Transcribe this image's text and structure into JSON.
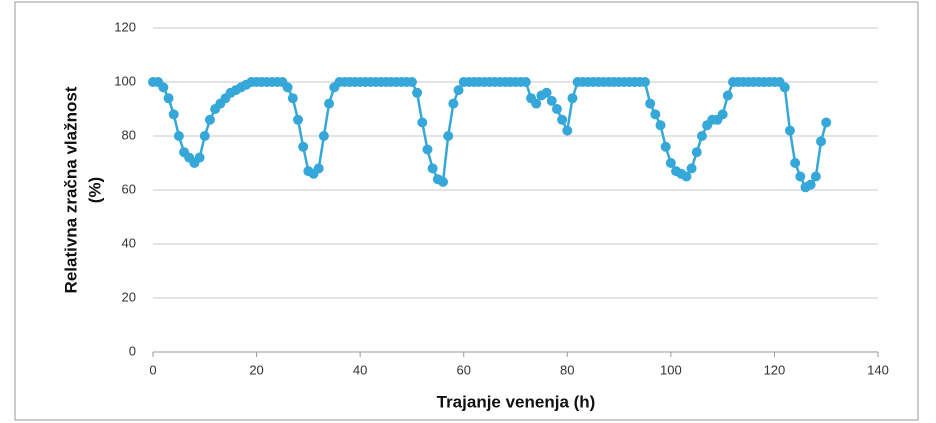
{
  "chart_data": {
    "type": "line",
    "ylabel_lines": [
      "Relativna zračna vlažnost",
      "(%)"
    ],
    "xlabel": "Trajanje venenja (h)",
    "x": [
      0,
      1,
      2,
      3,
      4,
      5,
      6,
      7,
      8,
      9,
      10,
      11,
      12,
      13,
      14,
      15,
      16,
      17,
      18,
      19,
      20,
      21,
      22,
      23,
      24,
      25,
      26,
      27,
      28,
      29,
      30,
      31,
      32,
      33,
      34,
      35,
      36,
      37,
      38,
      39,
      40,
      41,
      42,
      43,
      44,
      45,
      46,
      47,
      48,
      49,
      50,
      51,
      52,
      53,
      54,
      55,
      56,
      57,
      58,
      59,
      60,
      61,
      62,
      63,
      64,
      65,
      66,
      67,
      68,
      69,
      70,
      71,
      72,
      73,
      74,
      75,
      76,
      77,
      78,
      79,
      80,
      81,
      82,
      83,
      84,
      85,
      86,
      87,
      88,
      89,
      90,
      91,
      92,
      93,
      94,
      95,
      96,
      97,
      98,
      99,
      100,
      101,
      102,
      103,
      104,
      105,
      106,
      107,
      108,
      109,
      110,
      111,
      112,
      113,
      114,
      115,
      116,
      117,
      118,
      119,
      120,
      121,
      122,
      123,
      124,
      125,
      126,
      127,
      128,
      129,
      130
    ],
    "series": [
      {
        "color": "#35a7d9",
        "values": [
          100,
          100,
          98,
          94,
          88,
          80,
          74,
          72,
          70,
          72,
          80,
          86,
          90,
          92,
          94,
          96,
          97,
          98,
          99,
          100,
          100,
          100,
          100,
          100,
          100,
          100,
          98,
          94,
          86,
          76,
          67,
          66,
          68,
          80,
          92,
          98,
          100,
          100,
          100,
          100,
          100,
          100,
          100,
          100,
          100,
          100,
          100,
          100,
          100,
          100,
          100,
          96,
          85,
          75,
          68,
          64,
          63,
          80,
          92,
          97,
          100,
          100,
          100,
          100,
          100,
          100,
          100,
          100,
          100,
          100,
          100,
          100,
          100,
          94,
          92,
          95,
          96,
          93,
          90,
          86,
          82,
          94,
          100,
          100,
          100,
          100,
          100,
          100,
          100,
          100,
          100,
          100,
          100,
          100,
          100,
          100,
          92,
          88,
          84,
          76,
          70,
          67,
          66,
          65,
          68,
          74,
          80,
          84,
          86,
          86,
          88,
          95,
          100,
          100,
          100,
          100,
          100,
          100,
          100,
          100,
          100,
          100,
          98,
          82,
          70,
          65,
          61,
          62,
          65,
          78,
          85
        ]
      }
    ],
    "xlim": [
      0,
      140
    ],
    "xticks": [
      0,
      20,
      40,
      60,
      80,
      100,
      120,
      140
    ],
    "ylim": [
      0,
      120
    ],
    "yticks": [
      0,
      20,
      40,
      60,
      80,
      100,
      120
    ],
    "grid": true
  }
}
